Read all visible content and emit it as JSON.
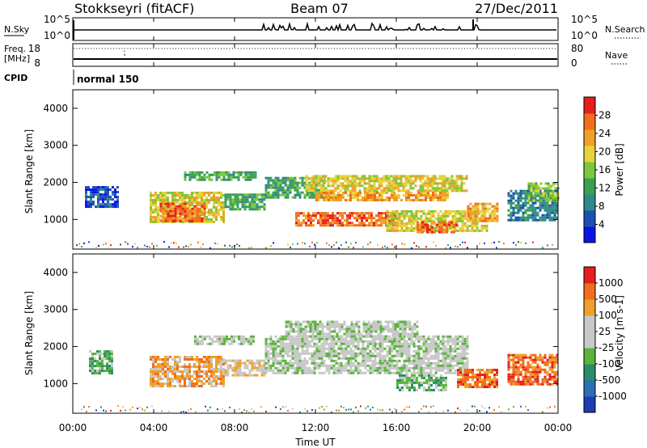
{
  "header": {
    "station": "Stokkseyri (fitACF)",
    "beam": "Beam 07",
    "date": "27/Dec/2011"
  },
  "nsky_panel": {
    "left_label": "N.Sky",
    "left_ticks": [
      "10^5",
      "10^0"
    ],
    "right_ticks": [
      "10^5",
      "10^0"
    ],
    "right_label": "N.Search"
  },
  "freq_panel": {
    "left_label_1": "Freq.",
    "left_label_2": "[MHz]",
    "left_ticks": [
      "18",
      "8"
    ],
    "right_ticks": [
      "80",
      "0"
    ],
    "right_label": "Nave"
  },
  "cpid_panel": {
    "label": "CPID",
    "mode_text": "normal 150"
  },
  "colors": {
    "power_scale": [
      "#0a14e6",
      "#1e50b4",
      "#2e8a8a",
      "#3ca050",
      "#7cc83c",
      "#e6d23c",
      "#f0a028",
      "#f06e1e",
      "#e61e1e"
    ],
    "velocity_scale": [
      "#1e3cb4",
      "#2e6eb4",
      "#288c6e",
      "#5ab43c",
      "#c8c8c8",
      "#c8c8c8",
      "#f0a028",
      "#f06e1e",
      "#e61e1e"
    ]
  },
  "chart_data": [
    {
      "type": "heatmap",
      "name": "power",
      "xlabel": "",
      "ylabel": "Slant Range [km]",
      "xlim": [
        "00:00",
        "24:00"
      ],
      "ylim": [
        200,
        4500
      ],
      "y_ticks": [
        "4000",
        "3000",
        "2000",
        "1000"
      ],
      "colorbar_label": "Power [dB]",
      "colorbar_ticks": [
        "28",
        "24",
        "20",
        "16",
        "12",
        "8",
        "4"
      ],
      "regions": [
        {
          "t0": 0.6,
          "t1": 2.2,
          "r0": 1350,
          "r1": 1900,
          "level": 1
        },
        {
          "t0": 3.8,
          "t1": 7.5,
          "r0": 900,
          "r1": 1750,
          "level": 5
        },
        {
          "t0": 4.3,
          "t1": 6.5,
          "r0": 950,
          "r1": 1450,
          "level": 7
        },
        {
          "t0": 7.5,
          "t1": 9.5,
          "r0": 1250,
          "r1": 1700,
          "level": 3
        },
        {
          "t0": 5.5,
          "t1": 9.0,
          "r0": 2100,
          "r1": 2300,
          "level": 3
        },
        {
          "t0": 9.5,
          "t1": 12.5,
          "r0": 1600,
          "r1": 2150,
          "level": 3
        },
        {
          "t0": 11.5,
          "t1": 19.5,
          "r0": 1750,
          "r1": 2200,
          "level": 5
        },
        {
          "t0": 12.0,
          "t1": 18.5,
          "r0": 1500,
          "r1": 1750,
          "level": 6
        },
        {
          "t0": 11.0,
          "t1": 16.0,
          "r0": 850,
          "r1": 1200,
          "level": 7
        },
        {
          "t0": 15.5,
          "t1": 20.5,
          "r0": 700,
          "r1": 1250,
          "level": 5
        },
        {
          "t0": 17.0,
          "t1": 19.0,
          "r0": 650,
          "r1": 950,
          "level": 7
        },
        {
          "t0": 19.5,
          "t1": 21.0,
          "r0": 950,
          "r1": 1450,
          "level": 6
        },
        {
          "t0": 21.5,
          "t1": 24.0,
          "r0": 1000,
          "r1": 1800,
          "level": 2
        },
        {
          "t0": 22.5,
          "t1": 24.0,
          "r0": 1500,
          "r1": 2000,
          "level": 4
        }
      ]
    },
    {
      "type": "heatmap",
      "name": "velocity",
      "xlabel": "Time UT",
      "ylabel": "Slant Range [km]",
      "xlim": [
        "00:00",
        "24:00"
      ],
      "ylim": [
        200,
        4500
      ],
      "x_ticks": [
        "00:00",
        "04:00",
        "08:00",
        "12:00",
        "16:00",
        "20:00",
        "00:00"
      ],
      "y_ticks": [
        "4000",
        "3000",
        "2000",
        "1000"
      ],
      "colorbar_label": "Velocity [m s-1]",
      "colorbar_ticks": [
        "1000",
        "500",
        "100",
        "25",
        "-25",
        "-100",
        "-500",
        "-1000"
      ],
      "regions": [
        {
          "t0": 0.8,
          "t1": 2.0,
          "r0": 1300,
          "r1": 1900,
          "level": 3
        },
        {
          "t0": 3.8,
          "t1": 7.5,
          "r0": 900,
          "r1": 1750,
          "level": 6
        },
        {
          "t0": 7.5,
          "t1": 9.5,
          "r0": 1200,
          "r1": 1650,
          "level": 5
        },
        {
          "t0": 6.0,
          "t1": 9.0,
          "r0": 2100,
          "r1": 2300,
          "level": 4
        },
        {
          "t0": 9.5,
          "t1": 19.5,
          "r0": 1300,
          "r1": 2300,
          "level": 4
        },
        {
          "t0": 10.5,
          "t1": 17.0,
          "r0": 2300,
          "r1": 2700,
          "level": 4
        },
        {
          "t0": 16.0,
          "t1": 18.5,
          "r0": 800,
          "r1": 1250,
          "level": 3
        },
        {
          "t0": 19.0,
          "t1": 21.0,
          "r0": 900,
          "r1": 1400,
          "level": 7
        },
        {
          "t0": 21.5,
          "t1": 24.0,
          "r0": 1000,
          "r1": 1800,
          "level": 7
        }
      ]
    }
  ]
}
